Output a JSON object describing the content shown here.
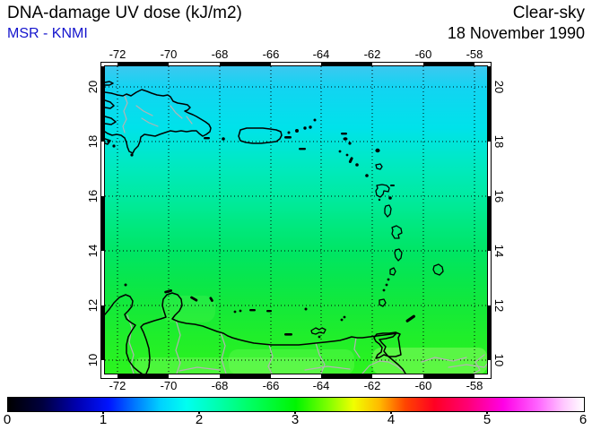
{
  "header": {
    "title": "DNA-damage UV dose (kJ/m2)",
    "source": "MSR - KNMI",
    "condition": "Clear-sky",
    "date": "18 November 1990"
  },
  "map": {
    "lon_tick_labels": [
      "-72",
      "-70",
      "-68",
      "-66",
      "-64",
      "-62",
      "-60",
      "-58"
    ],
    "lat_tick_labels": [
      "20",
      "18",
      "16",
      "14",
      "12",
      "10"
    ]
  },
  "colorbar": {
    "tick_labels": [
      "0",
      "1",
      "2",
      "3",
      "4",
      "5",
      "6"
    ],
    "min": 0,
    "max": 6,
    "units": "kJ/m2"
  },
  "colors": {
    "source_blue": "#1414cd",
    "field_top_cyan_blue": "#3cc8f0",
    "field_bottom_green": "#2cf41e",
    "coastline": "#000000",
    "inland_borders": "#b3b3b3"
  },
  "chart_data": {
    "type": "heatmap",
    "title": "DNA-damage UV dose (kJ/m2)",
    "subtitle": "MSR - KNMI, Clear-sky, 18 November 1990",
    "region": {
      "lon_range": [
        -72.5,
        -57.5
      ],
      "lat_range": [
        9.5,
        20.5
      ]
    },
    "lon_ticks": [
      -72,
      -70,
      -68,
      -66,
      -64,
      -62,
      -60,
      -58
    ],
    "lat_ticks": [
      20,
      18,
      16,
      14,
      12,
      10
    ],
    "grid": "dotted, every 2 degrees",
    "colorbar_range": [
      0,
      6
    ],
    "colorbar_style": "rainbow: black-blue-cyan-green-yellow-red-magenta-white",
    "field": "UV dose increases southward: ~1.6-1.8 kJ/m2 (cyan-blue) at 20N to ~2.8-3.0 kJ/m2 (bright green) at 10N",
    "geography": "Caribbean: Hispaniola, Puerto Rico, Lesser Antilles arc, ABC islands, Margarita, Trinidad and Tobago, Venezuela/Colombia coast"
  }
}
